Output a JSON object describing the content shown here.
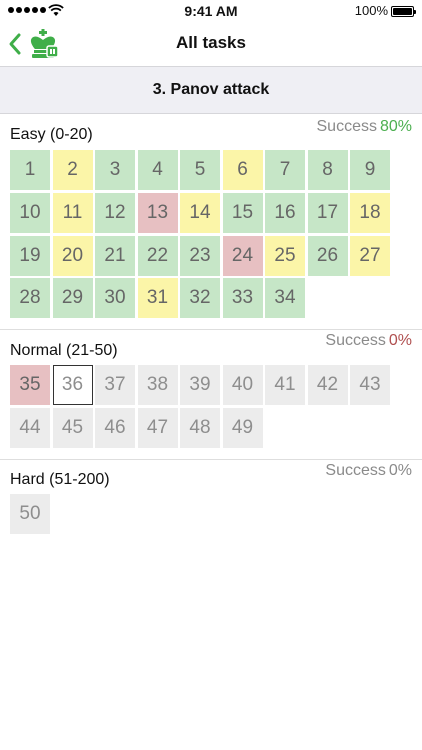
{
  "status_bar": {
    "time": "9:41 AM",
    "battery": "100%"
  },
  "nav": {
    "title": "All tasks",
    "back_icon": "chevron-left-icon",
    "logo_icon": "chess-king-logo-icon"
  },
  "section": {
    "title": "3. Panov attack"
  },
  "colors": {
    "accent": "#3fae49",
    "green": "#c6e6c7",
    "yellow": "#fbf5a8",
    "red": "#e7c0c2",
    "grey": "#ececec",
    "success_good": "#4caf50",
    "success_bad": "#b05050"
  },
  "levels": [
    {
      "label": "Easy (0-20)",
      "success_label": "Success",
      "success_value": "80%",
      "success_color": "#4caf50",
      "tasks": [
        {
          "n": "1",
          "state": "green"
        },
        {
          "n": "2",
          "state": "yellow"
        },
        {
          "n": "3",
          "state": "green"
        },
        {
          "n": "4",
          "state": "green"
        },
        {
          "n": "5",
          "state": "green"
        },
        {
          "n": "6",
          "state": "yellow"
        },
        {
          "n": "7",
          "state": "green"
        },
        {
          "n": "8",
          "state": "green"
        },
        {
          "n": "9",
          "state": "green"
        },
        {
          "n": "10",
          "state": "green"
        },
        {
          "n": "11",
          "state": "yellow"
        },
        {
          "n": "12",
          "state": "green"
        },
        {
          "n": "13",
          "state": "red"
        },
        {
          "n": "14",
          "state": "yellow"
        },
        {
          "n": "15",
          "state": "green"
        },
        {
          "n": "16",
          "state": "green"
        },
        {
          "n": "17",
          "state": "green"
        },
        {
          "n": "18",
          "state": "yellow"
        },
        {
          "n": "19",
          "state": "green"
        },
        {
          "n": "20",
          "state": "yellow"
        },
        {
          "n": "21",
          "state": "green"
        },
        {
          "n": "22",
          "state": "green"
        },
        {
          "n": "23",
          "state": "green"
        },
        {
          "n": "24",
          "state": "red"
        },
        {
          "n": "25",
          "state": "yellow"
        },
        {
          "n": "26",
          "state": "green"
        },
        {
          "n": "27",
          "state": "yellow"
        },
        {
          "n": "28",
          "state": "green"
        },
        {
          "n": "29",
          "state": "green"
        },
        {
          "n": "30",
          "state": "green"
        },
        {
          "n": "31",
          "state": "yellow"
        },
        {
          "n": "32",
          "state": "green"
        },
        {
          "n": "33",
          "state": "green"
        },
        {
          "n": "34",
          "state": "green"
        }
      ]
    },
    {
      "label": "Normal (21-50)",
      "success_label": "Success",
      "success_value": "0%",
      "success_color": "#b05050",
      "tasks": [
        {
          "n": "35",
          "state": "red"
        },
        {
          "n": "36",
          "state": "current"
        },
        {
          "n": "37",
          "state": "grey"
        },
        {
          "n": "38",
          "state": "grey"
        },
        {
          "n": "39",
          "state": "grey"
        },
        {
          "n": "40",
          "state": "grey"
        },
        {
          "n": "41",
          "state": "grey"
        },
        {
          "n": "42",
          "state": "grey"
        },
        {
          "n": "43",
          "state": "grey"
        },
        {
          "n": "44",
          "state": "grey"
        },
        {
          "n": "45",
          "state": "grey"
        },
        {
          "n": "46",
          "state": "grey"
        },
        {
          "n": "47",
          "state": "grey"
        },
        {
          "n": "48",
          "state": "grey"
        },
        {
          "n": "49",
          "state": "grey"
        }
      ]
    },
    {
      "label": "Hard (51-200)",
      "success_label": "Success",
      "success_value": "0%",
      "success_color": "#8a8a8a",
      "tasks": [
        {
          "n": "50",
          "state": "grey"
        }
      ]
    }
  ]
}
